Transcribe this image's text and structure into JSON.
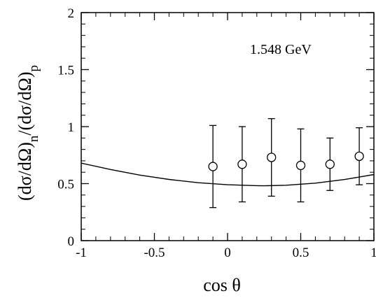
{
  "chart_data": {
    "type": "scatter",
    "xlabel": "cos  θ",
    "ylabel": {
      "part1": "(dσ/dΩ)",
      "sub1": "n",
      "part2": "/(dσ/dΩ)",
      "sub2": "p"
    },
    "annotation": "1.548 GeV",
    "xlim": [
      -1,
      1
    ],
    "ylim": [
      0,
      2
    ],
    "xticks": [
      -1,
      -0.5,
      0,
      0.5,
      1
    ],
    "xtick_labels": [
      "-1",
      "-0.5",
      "0",
      "0.5",
      "1"
    ],
    "yticks": [
      0,
      0.5,
      1,
      1.5,
      2
    ],
    "ytick_labels": [
      "0",
      "0.5",
      "1",
      "1.5",
      "2"
    ],
    "grid": false,
    "points": {
      "x": [
        -0.1,
        0.1,
        0.3,
        0.5,
        0.7,
        0.9
      ],
      "y": [
        0.65,
        0.67,
        0.73,
        0.66,
        0.67,
        0.74
      ],
      "err_low": [
        0.29,
        0.34,
        0.39,
        0.34,
        0.44,
        0.49
      ],
      "err_high": [
        1.01,
        1.0,
        1.07,
        0.98,
        0.9,
        0.99
      ]
    },
    "curve": {
      "x": [
        -1.0,
        -0.8,
        -0.6,
        -0.4,
        -0.2,
        0.0,
        0.2,
        0.25,
        0.4,
        0.6,
        0.8,
        1.0
      ],
      "y": [
        0.68,
        0.624,
        0.575,
        0.537,
        0.508,
        0.49,
        0.482,
        0.481,
        0.486,
        0.504,
        0.536,
        0.58
      ]
    }
  }
}
